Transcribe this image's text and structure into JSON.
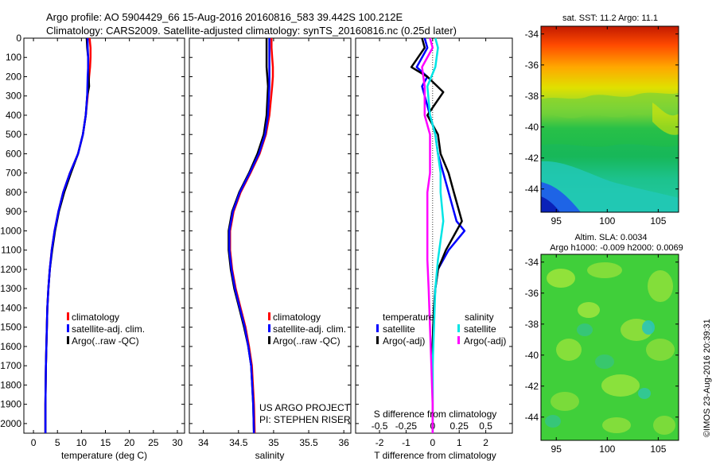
{
  "header": {
    "line1": "Argo profile: AO 5904429_66 15-Aug-2016 20160816_583 39.442S 100.212E",
    "line2": "Climatology: CARS2009. Satellite-adjusted climatology: synTS_20160816.nc (0.25d later)"
  },
  "colors": {
    "climatology": "#ff0000",
    "satellite": "#0000ff",
    "argo": "#000000",
    "sal_satellite": "#00e5e5",
    "sal_argo": "#ff00ff"
  },
  "depth_axis": {
    "min": 0,
    "max": 2050,
    "ticks": [
      0,
      100,
      200,
      300,
      400,
      500,
      600,
      700,
      800,
      900,
      1000,
      1100,
      1200,
      1300,
      1400,
      1500,
      1600,
      1700,
      1800,
      1900,
      2000
    ]
  },
  "chart_data": [
    {
      "id": "temp",
      "type": "line",
      "xlabel": "temperature (deg C)",
      "xlim": [
        -2,
        31.5
      ],
      "xticks": [
        0,
        5,
        10,
        15,
        20,
        25,
        30
      ],
      "legend": {
        "placement": "lower-middle",
        "entries": [
          "climatology",
          "satellite-adj. clim.",
          "Argo(..raw -QC)"
        ]
      },
      "series": [
        {
          "name": "climatology",
          "color": "#ff0000",
          "x": [
            11.7,
            11.9,
            11.9,
            11.8,
            11.6,
            11.3,
            10.9,
            10.3,
            9.3,
            7.6,
            6.2,
            5.2,
            4.4,
            3.8,
            3.4,
            3.1,
            2.9,
            2.8,
            2.7,
            2.6,
            2.5,
            2.5
          ],
          "depth": [
            0,
            50,
            100,
            150,
            200,
            300,
            400,
            500,
            600,
            700,
            800,
            900,
            1000,
            1100,
            1200,
            1300,
            1400,
            1500,
            1600,
            1700,
            1900,
            2050
          ]
        },
        {
          "name": "Argo(..raw -QC)",
          "color": "#000000",
          "x": [
            11.1,
            11.2,
            11.4,
            11.4,
            11.6,
            11.2,
            10.9,
            10.3,
            9.3,
            7.8,
            6.4,
            5.3,
            4.5,
            3.9,
            3.4,
            3.1,
            2.9,
            2.8,
            2.7,
            2.6,
            2.5,
            2.5
          ],
          "depth": [
            0,
            50,
            100,
            150,
            250,
            300,
            400,
            500,
            600,
            700,
            800,
            900,
            1000,
            1100,
            1200,
            1300,
            1400,
            1500,
            1600,
            1700,
            1900,
            2050
          ]
        },
        {
          "name": "satellite-adj. clim.",
          "color": "#0000ff",
          "x": [
            11.3,
            11.3,
            11.4,
            11.4,
            11.3,
            11.2,
            10.9,
            10.3,
            9.3,
            7.6,
            6.2,
            5.2,
            4.4,
            3.8,
            3.4,
            3.1,
            2.9,
            2.8,
            2.7,
            2.6,
            2.5,
            2.5
          ],
          "depth": [
            0,
            50,
            100,
            150,
            200,
            300,
            400,
            500,
            600,
            700,
            800,
            900,
            1000,
            1100,
            1200,
            1300,
            1400,
            1500,
            1600,
            1700,
            1900,
            2050
          ]
        }
      ]
    },
    {
      "id": "sal",
      "type": "line",
      "xlabel": "salinity",
      "xlim": [
        33.8,
        36.1
      ],
      "xticks": [
        34,
        34.5,
        35,
        35.5,
        36
      ],
      "legend": {
        "placement": "lower-middle",
        "entries": [
          "climatology",
          "satellite-adj. clim.",
          "Argo(..raw -QC)"
        ]
      },
      "annotation": [
        "US ARGO PROJECT",
        "PI: STEPHEN RISER"
      ],
      "series": [
        {
          "name": "climatology",
          "color": "#ff0000",
          "x": [
            34.97,
            34.97,
            34.98,
            34.99,
            34.99,
            34.98,
            34.94,
            34.89,
            34.8,
            34.67,
            34.53,
            34.43,
            34.38,
            34.38,
            34.41,
            34.46,
            34.53,
            34.6,
            34.65,
            34.69,
            34.72,
            34.73
          ],
          "depth": [
            0,
            50,
            100,
            150,
            200,
            250,
            400,
            500,
            600,
            700,
            800,
            900,
            1000,
            1100,
            1200,
            1300,
            1400,
            1500,
            1600,
            1700,
            1900,
            2050
          ]
        },
        {
          "name": "Argo(..raw -QC)",
          "color": "#000000",
          "x": [
            34.9,
            34.9,
            34.9,
            34.9,
            34.91,
            34.92,
            34.9,
            34.86,
            34.77,
            34.65,
            34.51,
            34.41,
            34.36,
            34.36,
            34.39,
            34.44,
            34.51,
            34.58,
            34.64,
            34.68,
            34.71,
            34.72
          ],
          "depth": [
            0,
            50,
            100,
            150,
            200,
            250,
            400,
            500,
            600,
            700,
            800,
            900,
            1000,
            1100,
            1200,
            1300,
            1400,
            1500,
            1600,
            1700,
            1900,
            2050
          ]
        },
        {
          "name": "satellite-adj. clim.",
          "color": "#0000ff",
          "x": [
            34.94,
            34.94,
            34.94,
            34.94,
            34.94,
            34.94,
            34.92,
            34.88,
            34.79,
            34.66,
            34.52,
            34.42,
            34.37,
            34.37,
            34.4,
            34.45,
            34.52,
            34.59,
            34.64,
            34.68,
            34.71,
            34.72
          ],
          "depth": [
            0,
            50,
            100,
            150,
            200,
            250,
            400,
            500,
            600,
            700,
            800,
            900,
            1000,
            1100,
            1200,
            1300,
            1400,
            1500,
            1600,
            1700,
            1900,
            2050
          ]
        }
      ]
    },
    {
      "id": "diff",
      "type": "line",
      "xlabel": "T difference from climatology",
      "xlabel_top": "S difference from climatology",
      "xlim": [
        -2.9,
        3.0
      ],
      "xticks": [
        -2,
        -1,
        0,
        1,
        2
      ],
      "top_ticks": [
        {
          "label": "-0.5",
          "x": -2
        },
        {
          "label": "-0.25",
          "x": -1
        },
        {
          "label": "0",
          "x": 0
        },
        {
          "label": "0.25",
          "x": 1
        },
        {
          "label": "0.5",
          "x": 2
        }
      ],
      "legend": {
        "placement": "lower-middle",
        "temperature_title": "temperature",
        "salinity_title": "salinity",
        "entries": [
          {
            "label": "satellite",
            "color": "#0000ff"
          },
          {
            "label": "Argo(-adj)",
            "color": "#000000"
          },
          {
            "label": "satellite",
            "color": "#00e5e5"
          },
          {
            "label": "Argo(-adj)",
            "color": "#ff00ff"
          }
        ]
      },
      "series": [
        {
          "name": "T satellite",
          "color": "#0000ff",
          "x": [
            -0.3,
            -0.2,
            -0.6,
            -0.2,
            -0.4,
            -0.1,
            0.1,
            0.2,
            0.4,
            0.6,
            0.7,
            0.9,
            1.2,
            0.6,
            0.2,
            0.1,
            0.05,
            0.02,
            0.0,
            0.0,
            0.0
          ],
          "depth": [
            0,
            50,
            150,
            200,
            250,
            400,
            500,
            600,
            700,
            800,
            850,
            950,
            1000,
            1100,
            1200,
            1300,
            1400,
            1500,
            1600,
            1800,
            2050
          ]
        },
        {
          "name": "T Argo(-adj)",
          "color": "#000000",
          "x": [
            -0.4,
            -0.3,
            -0.8,
            -0.2,
            0.4,
            -0.2,
            0.2,
            0.3,
            0.6,
            0.8,
            0.9,
            1.1,
            0.9,
            0.5,
            0.2,
            0.1,
            0.05,
            0.02,
            0.0,
            0.0,
            0.0
          ],
          "depth": [
            0,
            50,
            150,
            200,
            280,
            400,
            500,
            600,
            700,
            800,
            850,
            950,
            1000,
            1100,
            1200,
            1300,
            1400,
            1500,
            1600,
            1800,
            2050
          ]
        },
        {
          "name": "S satellite",
          "color": "#00e5e5",
          "x": [
            0.1,
            0.2,
            0.1,
            -0.2,
            -0.1,
            0.1,
            0.2,
            0.3,
            0.3,
            0.4,
            0.3,
            0.2,
            0.1,
            0.05,
            0.0,
            0.0,
            0.0
          ],
          "depth": [
            0,
            50,
            150,
            250,
            400,
            500,
            600,
            700,
            800,
            950,
            1050,
            1150,
            1300,
            1500,
            1700,
            1900,
            2050
          ]
        },
        {
          "name": "S Argo(-adj)",
          "color": "#ff00ff",
          "x": [
            -0.1,
            0.0,
            -0.4,
            -0.3,
            -0.3,
            -0.1,
            -0.1,
            -0.1,
            -0.2,
            -0.2,
            -0.2,
            -0.2,
            -0.15,
            -0.1,
            -0.05,
            0.0,
            0.0
          ],
          "depth": [
            0,
            50,
            150,
            250,
            400,
            500,
            600,
            700,
            800,
            950,
            1050,
            1150,
            1300,
            1500,
            1700,
            1900,
            2050
          ]
        }
      ]
    },
    {
      "id": "sst_map",
      "type": "heatmap",
      "title": "sat. SST: 11.2 Argo: 11.1",
      "xlim": [
        93.5,
        107
      ],
      "ylim": [
        -45.5,
        -33.5
      ],
      "xticks": [
        95,
        100,
        105
      ],
      "yticks": [
        -34,
        -36,
        -38,
        -40,
        -42,
        -44
      ]
    },
    {
      "id": "sla_map",
      "type": "heatmap",
      "title_line1": "Altim. SLA: 0.0034",
      "title_line2": "Argo h1000: -0.009 h2000: 0.0069",
      "xlim": [
        93.5,
        107
      ],
      "ylim": [
        -45.5,
        -33.5
      ],
      "xticks": [
        95,
        100,
        105
      ],
      "yticks": [
        -34,
        -36,
        -38,
        -40,
        -42,
        -44
      ]
    }
  ],
  "credit": "©IMOS 23-Aug-2016 20:39:31"
}
